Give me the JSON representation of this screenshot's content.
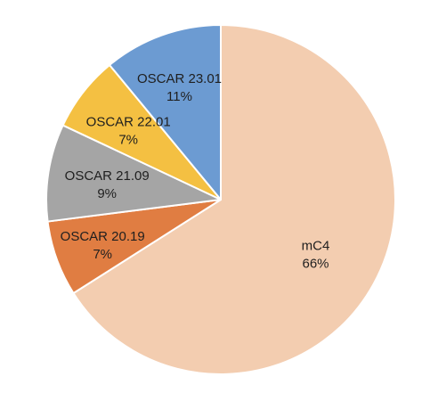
{
  "chart_data": {
    "type": "pie",
    "title": "",
    "slices": [
      {
        "label": "mC4",
        "percent_label": "66%",
        "value": 66,
        "color": "#F3CDB0"
      },
      {
        "label": "OSCAR 20.19",
        "percent_label": "7%",
        "value": 7,
        "color": "#E07D42"
      },
      {
        "label": "OSCAR 21.09",
        "percent_label": "9%",
        "value": 9,
        "color": "#A5A5A5"
      },
      {
        "label": "OSCAR 22.01",
        "percent_label": "7%",
        "value": 7,
        "color": "#F4C042"
      },
      {
        "label": "OSCAR 23.01",
        "percent_label": "11%",
        "value": 11,
        "color": "#6C9BD2"
      }
    ],
    "legend": "none",
    "data_labels": "inside"
  }
}
